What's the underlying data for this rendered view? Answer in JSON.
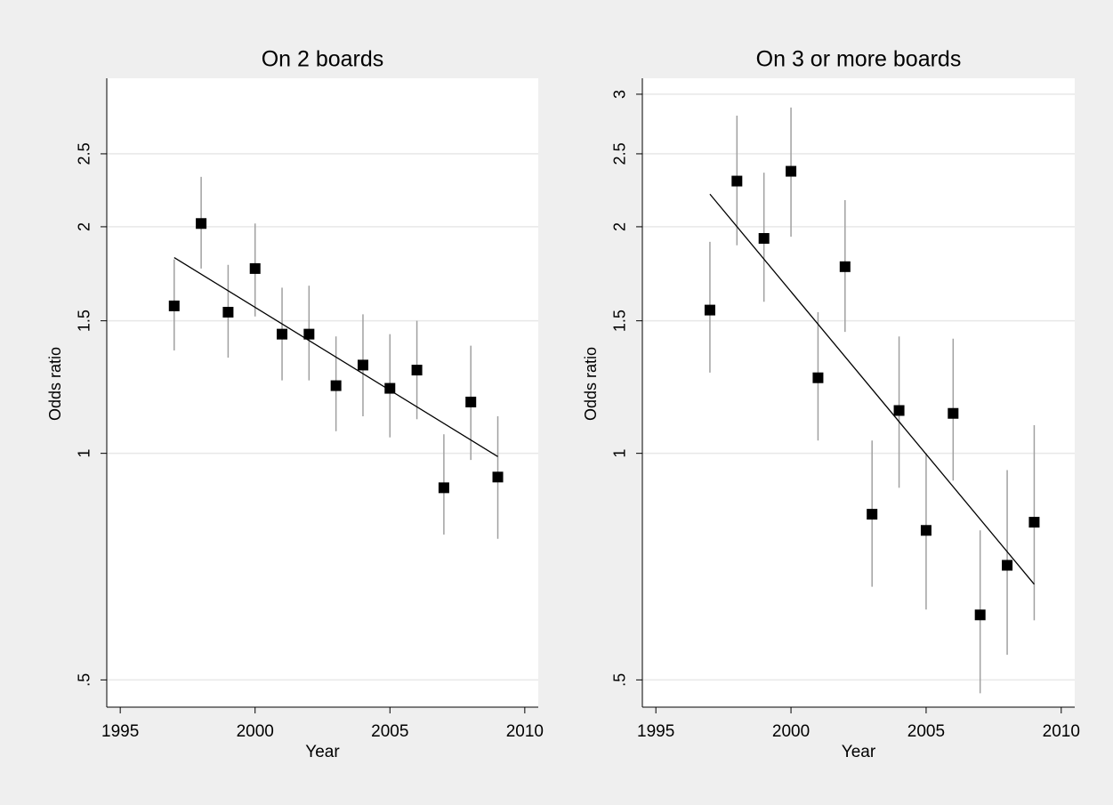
{
  "chart_data": [
    {
      "type": "scatter",
      "title": "On 2 boards",
      "x_label": "Year",
      "y_label": "Odds ratio",
      "x": [
        1997,
        1998,
        1999,
        2000,
        2001,
        2002,
        2003,
        2004,
        2005,
        2006,
        2007,
        2008,
        2009
      ],
      "values": [
        1.57,
        2.02,
        1.54,
        1.76,
        1.44,
        1.44,
        1.23,
        1.31,
        1.22,
        1.29,
        0.9,
        1.17,
        0.93
      ],
      "ci_low": [
        1.37,
        1.76,
        1.34,
        1.52,
        1.25,
        1.25,
        1.07,
        1.12,
        1.05,
        1.11,
        0.78,
        0.98,
        0.77
      ],
      "ci_high": [
        1.81,
        2.33,
        1.78,
        2.02,
        1.66,
        1.67,
        1.43,
        1.53,
        1.44,
        1.5,
        1.06,
        1.39,
        1.12
      ],
      "fit_x": [
        1997,
        2009
      ],
      "fit_values": [
        1.82,
        0.99
      ],
      "marker_color": "#000000",
      "ci_color": "#a0a0a0",
      "fit_color": "#000000",
      "xlim": [
        1994.5,
        2010.5
      ],
      "xticks": [
        1995,
        2000,
        2005,
        2010
      ],
      "ylim": [
        0.46,
        3.15
      ],
      "yticks": [
        {
          "value": 0.5,
          "label": ".5"
        },
        1,
        1.5,
        2,
        2.5
      ],
      "log_y": true,
      "grid": true
    },
    {
      "type": "scatter",
      "title": "On 3 or more boards",
      "x_label": "Year",
      "y_label": "Odds ratio",
      "x": [
        1997,
        1998,
        1999,
        2000,
        2001,
        2002,
        2003,
        2004,
        2005,
        2006,
        2007,
        2008,
        2009
      ],
      "values": [
        1.55,
        2.3,
        1.93,
        2.37,
        1.26,
        1.77,
        0.83,
        1.14,
        0.79,
        1.13,
        0.61,
        0.71,
        0.81
      ],
      "ci_low": [
        1.28,
        1.89,
        1.59,
        1.94,
        1.04,
        1.45,
        0.665,
        0.9,
        0.62,
        0.92,
        0.48,
        0.54,
        0.6
      ],
      "ci_high": [
        1.91,
        2.81,
        2.36,
        2.88,
        1.54,
        2.17,
        1.04,
        1.43,
        1.0,
        1.42,
        0.79,
        0.95,
        1.09
      ],
      "fit_x": [
        1997,
        2009
      ],
      "fit_values": [
        2.21,
        0.67
      ],
      "marker_color": "#000000",
      "ci_color": "#a0a0a0",
      "fit_color": "#000000",
      "xlim": [
        1994.5,
        2010.5
      ],
      "xticks": [
        1995,
        2000,
        2005,
        2010
      ],
      "ylim": [
        0.46,
        3.15
      ],
      "yticks": [
        {
          "value": 0.5,
          "label": ".5"
        },
        1,
        1.5,
        2,
        2.5,
        3
      ],
      "log_y": true,
      "grid": true
    }
  ]
}
